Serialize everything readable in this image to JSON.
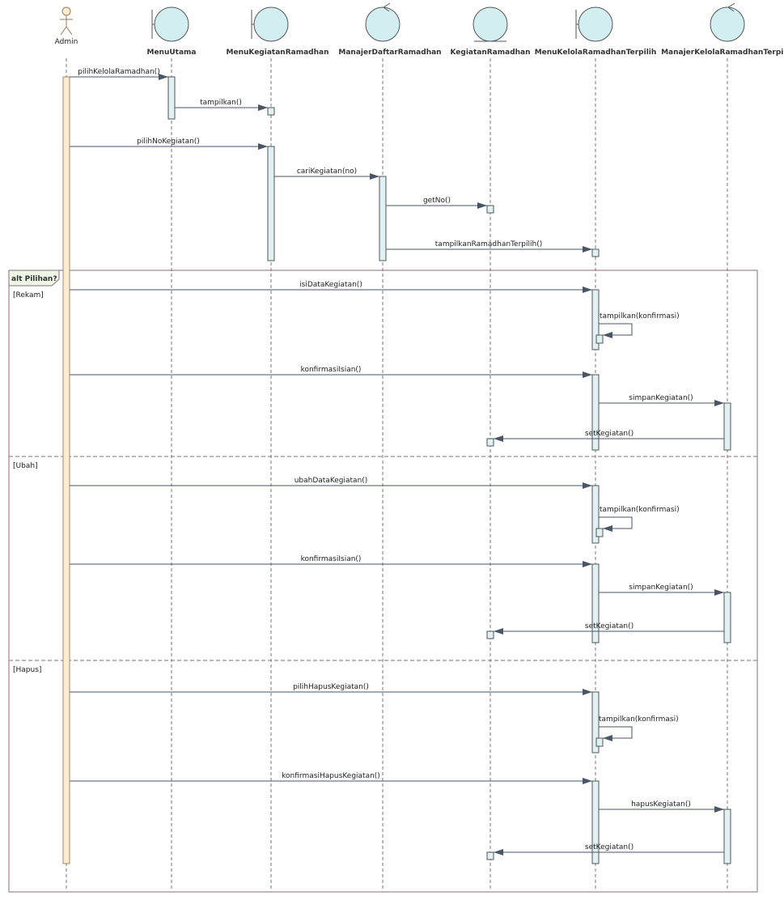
{
  "colors": {
    "lifeline_shape": "#d3eef0",
    "activation": "#dff1f2",
    "actor_activation": "#fdebd3",
    "fragment_border": "#8a6f78",
    "message": "#4a5565"
  },
  "participants": [
    {
      "name": "Admin",
      "kind": "actor"
    },
    {
      "name": "MenuUtama",
      "kind": "boundary"
    },
    {
      "name": "MenuKegiatanRamadhan",
      "kind": "boundary"
    },
    {
      "name": "ManajerDaftarRamadhan",
      "kind": "control"
    },
    {
      "name": "KegiatanRamadhan",
      "kind": "entity"
    },
    {
      "name": "MenuKelolaRamadhanTerpilih",
      "kind": "boundary"
    },
    {
      "name": "ManajerKelolaRamadhanTerpilih",
      "kind": "control"
    }
  ],
  "messages": [
    {
      "label": "pilihKelolaRamadhan()",
      "from": "Admin",
      "to": "MenuUtama"
    },
    {
      "label": "tampilkan()",
      "from": "MenuUtama",
      "to": "MenuKegiatanRamadhan"
    },
    {
      "label": "pilihNoKegiatan()",
      "from": "Admin",
      "to": "MenuKegiatanRamadhan"
    },
    {
      "label": "cariKegiatan(no)",
      "from": "MenuKegiatanRamadhan",
      "to": "ManajerDaftarRamadhan"
    },
    {
      "label": "getNo()",
      "from": "ManajerDaftarRamadhan",
      "to": "KegiatanRamadhan"
    },
    {
      "label": "tampilkanRamadhanTerpilih()",
      "from": "ManajerDaftarRamadhan",
      "to": "MenuKelolaRamadhanTerpilih"
    },
    {
      "label": "isiDataKegiatan()",
      "from": "Admin",
      "to": "MenuKelolaRamadhanTerpilih"
    },
    {
      "label": "tampilkan(konfirmasi)",
      "from": "MenuKelolaRamadhanTerpilih",
      "to": "MenuKelolaRamadhanTerpilih"
    },
    {
      "label": "konfirmasiIsian()",
      "from": "Admin",
      "to": "MenuKelolaRamadhanTerpilih"
    },
    {
      "label": "simpanKegiatan()",
      "from": "MenuKelolaRamadhanTerpilih",
      "to": "ManajerKelolaRamadhanTerpilih"
    },
    {
      "label": "setKegiatan()",
      "from": "ManajerKelolaRamadhanTerpilih",
      "to": "KegiatanRamadhan"
    },
    {
      "label": "ubahDataKegiatan()",
      "from": "Admin",
      "to": "MenuKelolaRamadhanTerpilih"
    },
    {
      "label": "tampilkan(konfirmasi)",
      "from": "MenuKelolaRamadhanTerpilih",
      "to": "MenuKelolaRamadhanTerpilih"
    },
    {
      "label": "konfirmasiIsian()",
      "from": "Admin",
      "to": "MenuKelolaRamadhanTerpilih"
    },
    {
      "label": "simpanKegiatan()",
      "from": "MenuKelolaRamadhanTerpilih",
      "to": "ManajerKelolaRamadhanTerpilih"
    },
    {
      "label": "setKegiatan()",
      "from": "ManajerKelolaRamadhanTerpilih",
      "to": "KegiatanRamadhan"
    },
    {
      "label": "pilihHapusKegiatan()",
      "from": "Admin",
      "to": "MenuKelolaRamadhanTerpilih"
    },
    {
      "label": "tampilkan(konfirmasi)",
      "from": "MenuKelolaRamadhanTerpilih",
      "to": "MenuKelolaRamadhanTerpilih"
    },
    {
      "label": "konfirmasiHapusKegiatan()",
      "from": "Admin",
      "to": "MenuKelolaRamadhanTerpilih"
    },
    {
      "label": "hapusKegiatan()",
      "from": "MenuKelolaRamadhanTerpilih",
      "to": "ManajerKelolaRamadhanTerpilih"
    },
    {
      "label": "setKegiatan()",
      "from": "ManajerKelolaRamadhanTerpilih",
      "to": "KegiatanRamadhan"
    }
  ],
  "fragment": {
    "label": "alt Pilihan?",
    "guards": [
      "[Rekam]",
      "[Ubah]",
      "[Hapus]"
    ]
  }
}
